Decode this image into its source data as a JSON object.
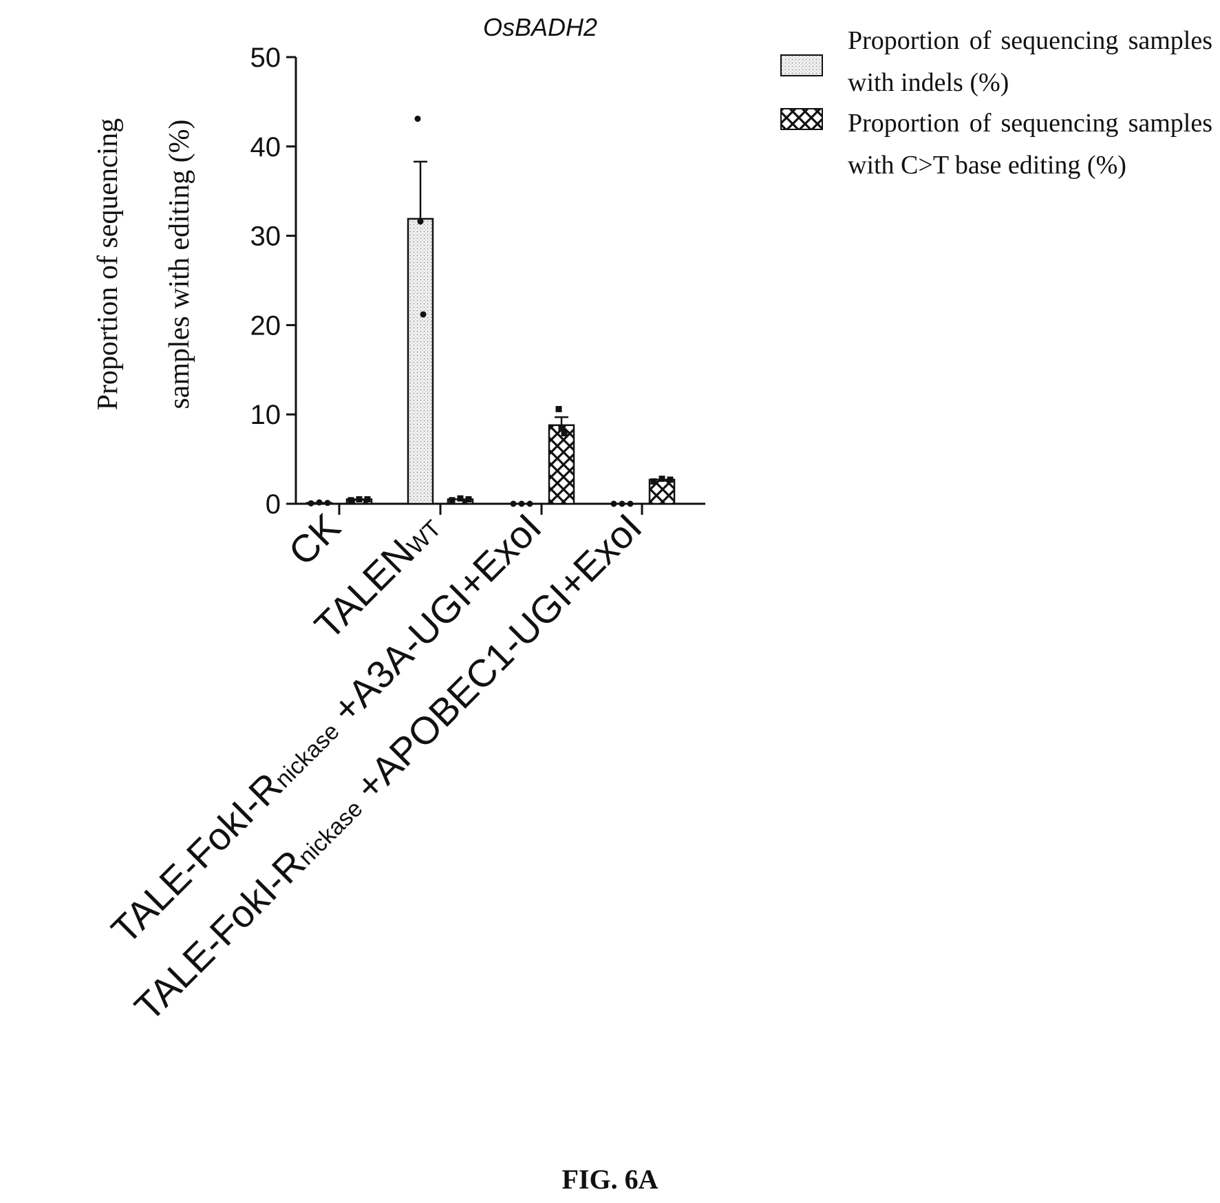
{
  "chart_data": {
    "type": "bar",
    "title": "OsBADH2",
    "ylabel": "Proportion of sequencing samples with editing (%)",
    "ylabel_lines": [
      "Proportion of sequencing",
      "samples with editing (%)"
    ],
    "ylim": [
      0,
      50
    ],
    "yticks": [
      0,
      10,
      20,
      30,
      40,
      50
    ],
    "categories": [
      {
        "parts": [
          {
            "t": "CK"
          }
        ]
      },
      {
        "parts": [
          {
            "t": "TALEN"
          },
          {
            "t": "WT",
            "sub": true
          }
        ]
      },
      {
        "parts": [
          {
            "t": "TALE-FokI-R"
          },
          {
            "t": "nickase",
            "sub": true
          },
          {
            "t": " +A3A-UGI+ExoI"
          }
        ]
      },
      {
        "parts": [
          {
            "t": "TALE-FokI-R"
          },
          {
            "t": "nickase",
            "sub": true
          },
          {
            "t": " +APOBEC1-UGI+ExoI"
          }
        ]
      }
    ],
    "series": [
      {
        "name": "Proportion of sequencing samples with indels (%)",
        "pattern": "dots",
        "values": [
          0.1,
          31.9,
          0,
          0
        ],
        "errors": [
          0.1,
          6.4,
          0,
          0
        ],
        "points": [
          [
            0.05,
            0.15,
            0.1
          ],
          [
            43.1,
            31.6,
            21.2
          ],
          [
            0,
            0,
            0
          ],
          [
            0,
            0,
            0
          ]
        ]
      },
      {
        "name": "Proportion of sequencing samples with C>T base editing (%)",
        "pattern": "crosshatch",
        "values": [
          0.5,
          0.5,
          8.8,
          2.7
        ],
        "errors": [
          0.1,
          0.1,
          0.9,
          0.2
        ],
        "points": [
          [
            0.4,
            0.5,
            0.5
          ],
          [
            0.4,
            0.6,
            0.5
          ],
          [
            10.6,
            8.5,
            7.9
          ],
          [
            2.5,
            2.8,
            2.7
          ]
        ]
      }
    ],
    "legend_position": "top-right",
    "grid": false
  },
  "legend": {
    "item1_label": "Proportion of sequencing samples with indels (%)",
    "item2_label": "Proportion of sequencing samples with C>T base editing (%)"
  },
  "figure_label": "FIG. 6A"
}
